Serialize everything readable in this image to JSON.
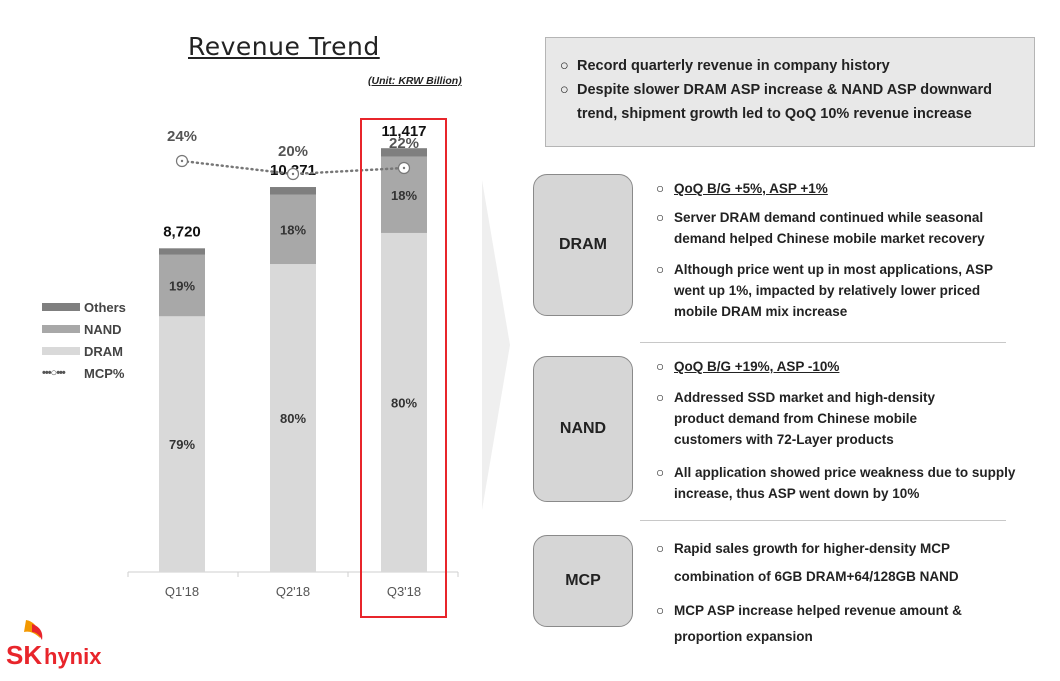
{
  "chart_data": {
    "type": "bar",
    "stacked": true,
    "title": "Revenue Trend",
    "unit_label": "(Unit: KRW Billion)",
    "categories": [
      "Q1'18",
      "Q2'18",
      "Q3'18"
    ],
    "totals": [
      8720,
      10371,
      11417
    ],
    "total_labels": [
      "8,720",
      "10,371",
      "11,417"
    ],
    "series": [
      {
        "name": "DRAM",
        "share_labels": [
          "79%",
          "80%",
          "80%"
        ],
        "color": "#d9d9d9"
      },
      {
        "name": "NAND",
        "share_labels": [
          "19%",
          "18%",
          "18%"
        ],
        "color": "#a8a8a8"
      },
      {
        "name": "Others",
        "color": "#7f7f7f"
      }
    ],
    "mcp": {
      "name": "MCP%",
      "labels": [
        "24%",
        "20%",
        "22%"
      ],
      "values": [
        24,
        20,
        22
      ]
    },
    "shares": {
      "dram": [
        79,
        80,
        80
      ],
      "nand": [
        19,
        18,
        18
      ]
    },
    "ylim": [
      0,
      12500
    ],
    "highlight": "Q3'18"
  },
  "summary": {
    "bullets": [
      "Record quarterly revenue in company history",
      "Despite slower DRAM ASP increase & NAND ASP downward trend, shipment growth led to QoQ 10% revenue increase"
    ]
  },
  "segments": [
    {
      "name": "DRAM",
      "bullets": [
        {
          "text": "QoQ B/G +5%, ASP +1%",
          "underline": true
        },
        {
          "text": "Server DRAM demand continued while seasonal demand helped Chinese mobile market recovery"
        },
        {
          "text": "Although price went up in most applications, ASP went up 1%, impacted by relatively lower priced mobile DRAM mix increase"
        }
      ]
    },
    {
      "name": "NAND",
      "bullets": [
        {
          "text": "QoQ B/G +19%, ASP -10%",
          "underline": true
        },
        {
          "text": "Addressed SSD market and high-density product demand from Chinese mobile customers with 72-Layer products"
        },
        {
          "text": "All application showed price weakness due to supply increase, thus ASP went down by 10%"
        }
      ]
    },
    {
      "name": "MCP",
      "bullets": [
        {
          "text": "Rapid sales growth for higher-density MCP combination of 6GB DRAM+64/128GB NAND"
        },
        {
          "text": "MCP ASP increase helped revenue amount & proportion expansion"
        }
      ]
    }
  ],
  "bullet_mark": "○",
  "logo": {
    "text_sk": "SK",
    "text_hynix": "hynix",
    "color": "#e8252b",
    "accent": "#f39800"
  }
}
